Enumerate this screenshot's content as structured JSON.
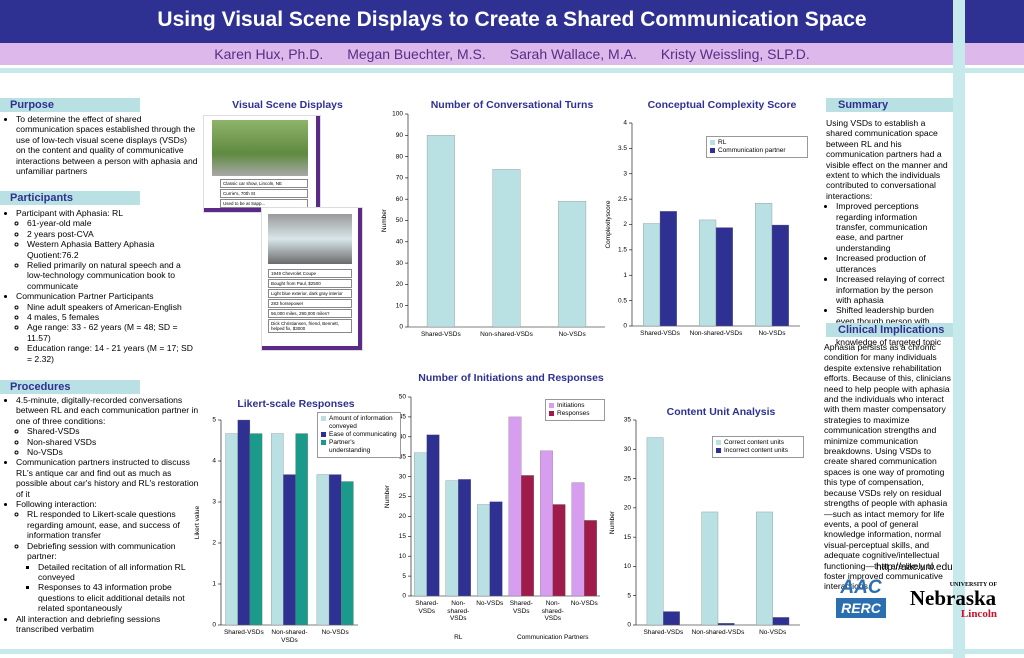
{
  "header": {
    "title": "Using Visual Scene Displays to Create a Shared Communication Space",
    "authors": [
      "Karen Hux, Ph.D.",
      "Megan Buechter, M.S.",
      "Sarah Wallace, M.A.",
      "Kristy Weissling, SLP.D."
    ]
  },
  "purpose": {
    "heading": "Purpose",
    "items": [
      "To determine the effect of shared communication spaces established through the use of low-tech visual scene displays (VSDs) on the content and quality of communicative interactions between a person with aphasia and unfamiliar partners"
    ]
  },
  "participants": {
    "heading": "Participants",
    "rl": "Participant with Aphasia: RL",
    "rl_items": [
      "61-year-old male",
      "2 years post-CVA",
      "Western Aphasia Battery Aphasia Quotient:76.2",
      "Relied primarily on natural speech and a low-technology communication book to communicate"
    ],
    "partners": "Communication Partner Participants",
    "partner_items": [
      "Nine adult speakers of American-English",
      "4 males, 5 females",
      "Age range: 33 - 62 years (M = 48; SD = 11.57)",
      "Education range: 14 - 21 years (M = 17; SD = 2.32)"
    ]
  },
  "procedures": {
    "heading": "Procedures",
    "p1": "4.5-minute, digitally-recorded conversations between RL and each communication partner in one of three conditions:",
    "p1_items": [
      "Shared-VSDs",
      "Non-shared VSDs",
      "No-VSDs"
    ],
    "p2": "Communication partners instructed to discuss RL's antique car and find out as much as possible about car's history and RL's restoration of it",
    "p3": "Following interaction:",
    "p3_items": [
      "RL responded to Likert-scale questions regarding amount, ease, and success of information transfer",
      "Debriefing session with communication partner:"
    ],
    "p3_sub": [
      "Detailed recitation of all information RL conveyed",
      "Responses to 43 information probe questions to elicit additional details not related spontaneously"
    ],
    "p4": "All interaction and debriefing sessions transcribed verbatim"
  },
  "vsd": {
    "heading": "Visual Scene Displays",
    "scene1": [
      "Classic car show, Lincoln, NE",
      "Currie's, 70th St",
      "Used to be at Sapp..."
    ],
    "scene2": [
      "1949 Chevrolet Coupe",
      "Bought from Paul, $2500",
      "Light blue exterior, dark gray interior",
      "283 horsepower",
      "56,000 miles, 290,000 miles?",
      "Dick Christiansen, friend, Bennett, helped fix, $3000"
    ]
  },
  "summary": {
    "heading": "Summary",
    "intro": "Using VSDs to establish a shared communication space between RL and his communication partners had a visible effect on the manner and extent to which the individuals contributed to conversational interactions:",
    "items": [
      "Improved perceptions regarding information transfer, communication ease, and partner understanding",
      "Increased production of utterances",
      "Increased relaying of correct information by the person with aphasia",
      "Shifted leadership burden even though person with aphasia had greater knowledge of targeted topic"
    ]
  },
  "clinical": {
    "heading": "Clinical Implications",
    "text": "Aphasia persists as a chronic condition for many individuals despite extensive rehabilitation efforts. Because of this, clinicians need to help people with aphasia and the individuals who interact with them master compensatory strategies to maximize communication strengths and minimize communication breakdowns. Using VSDs to create shared communication spaces is one way of promoting this type of compensation, because VSDs rely on residual strengths of people with aphasia—such as intact memory for life events, a pool of general knowledge information, normal visual-perceptual skills, and adequate cognitive/intellectual functioning—that are likely to foster improved communicative interactions."
  },
  "footer": {
    "url": "http://aac.unl.edu",
    "logo1": [
      "AAC",
      "RERC"
    ],
    "logo2": [
      "UNIVERSITY OF",
      "Nebraska",
      "Lincoln"
    ]
  },
  "chart_data": [
    {
      "type": "bar",
      "title": "Number of Conversational Turns",
      "categories": [
        "Shared-VSDs",
        "Non-shared-VSDs",
        "No-VSDs"
      ],
      "values": [
        90,
        74,
        59
      ],
      "color": "#b9e0e2",
      "ylim": [
        0,
        100
      ],
      "yticks": [
        0,
        10,
        20,
        30,
        40,
        50,
        60,
        70,
        80,
        90,
        100
      ],
      "ylabel": "Number"
    },
    {
      "type": "bar",
      "title": "Conceptual Complexity Score",
      "categories": [
        "Shared-VSDs",
        "Non-shared-VSDs",
        "No-VSDs"
      ],
      "series": [
        {
          "name": "RL",
          "color": "#b9e0e2",
          "values": [
            2.02,
            2.09,
            2.42
          ]
        },
        {
          "name": "Communication partner",
          "color": "#2e3192",
          "values": [
            2.26,
            1.94,
            1.99
          ]
        }
      ],
      "ylim": [
        0,
        4
      ],
      "yticks": [
        0,
        0.5,
        1,
        1.5,
        2,
        2.5,
        3,
        3.5,
        4
      ],
      "ylabel": "Complexityscore",
      "legend": "upper right"
    },
    {
      "type": "bar",
      "title": "Likert-scale Responses",
      "categories": [
        "Shared-VSDs",
        "Non-shared-VSDs",
        "No-VSDs"
      ],
      "series": [
        {
          "name": "Amount of information conveyed",
          "color": "#b9e0e2",
          "values": [
            4.67,
            4.67,
            3.67
          ]
        },
        {
          "name": "Ease of communicating",
          "color": "#2e3192",
          "values": [
            5,
            3.67,
            3.67
          ]
        },
        {
          "name": "Partner's understanding",
          "color": "#1a9a8a",
          "values": [
            4.67,
            4.67,
            3.5
          ]
        }
      ],
      "ylim": [
        0,
        5
      ],
      "yticks": [
        0,
        1,
        2,
        3,
        4,
        5
      ],
      "ylabel": "Likert value",
      "legend": "right"
    },
    {
      "type": "bar",
      "title": "Number of Initiations and Responses",
      "categories": [
        "Shared-VSDs",
        "Non-shared-VSDs",
        "No-VSDs",
        "Shared-VSDs",
        "Non-shared-VSDs",
        "No-VSDs"
      ],
      "groups": [
        "RL",
        "Communication Partners"
      ],
      "series": [
        {
          "name": "Initiations",
          "color": "#d79ef0",
          "colors": [
            "#b9e0e2",
            "#b9e0e2",
            "#b9e0e2",
            "#d79ef0",
            "#d79ef0",
            "#d79ef0"
          ],
          "values": [
            36,
            29,
            23,
            45,
            36.5,
            28.5
          ]
        },
        {
          "name": "Responses",
          "color": "#9e1b4a",
          "colors": [
            "#2e3192",
            "#2e3192",
            "#2e3192",
            "#9e1b4a",
            "#9e1b4a",
            "#9e1b4a"
          ],
          "values": [
            40.5,
            29.3,
            23.7,
            30.3,
            23,
            19
          ]
        }
      ],
      "ylim": [
        0,
        50
      ],
      "yticks": [
        0,
        5,
        10,
        15,
        20,
        25,
        30,
        35,
        40,
        45,
        50
      ],
      "ylabel": "Number",
      "legend": "upper right"
    },
    {
      "type": "bar",
      "title": "Content Unit Analysis",
      "categories": [
        "Shared-VSDs",
        "Non-shared-VSDs",
        "No-VSDs"
      ],
      "series": [
        {
          "name": "Correct content units",
          "color": "#b9e0e2",
          "values": [
            32,
            19.3,
            19.3
          ]
        },
        {
          "name": "Incorrect content units",
          "color": "#2e3192",
          "values": [
            2.3,
            0.3,
            1.3
          ]
        }
      ],
      "ylim": [
        0,
        35
      ],
      "yticks": [
        0,
        5,
        10,
        15,
        20,
        25,
        30,
        35
      ],
      "ylabel": "Number",
      "legend": "upper right"
    }
  ]
}
